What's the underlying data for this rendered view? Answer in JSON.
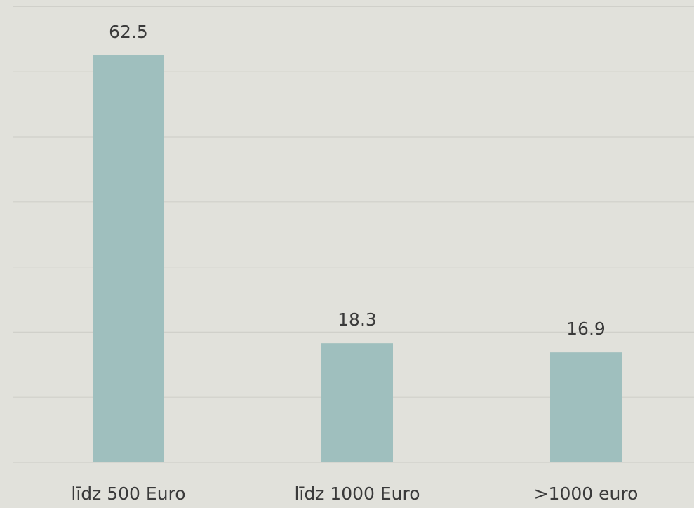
{
  "chart_data": {
    "type": "bar",
    "categories": [
      "līdz 500 Euro",
      "līdz 1000 Euro",
      ">1000 euro"
    ],
    "values": [
      62.5,
      18.3,
      16.9
    ],
    "color": "#9fbfbe",
    "ylim": [
      0,
      70
    ],
    "yticks": [
      0,
      10,
      20,
      30,
      40,
      50,
      60,
      70
    ],
    "grid": true
  }
}
